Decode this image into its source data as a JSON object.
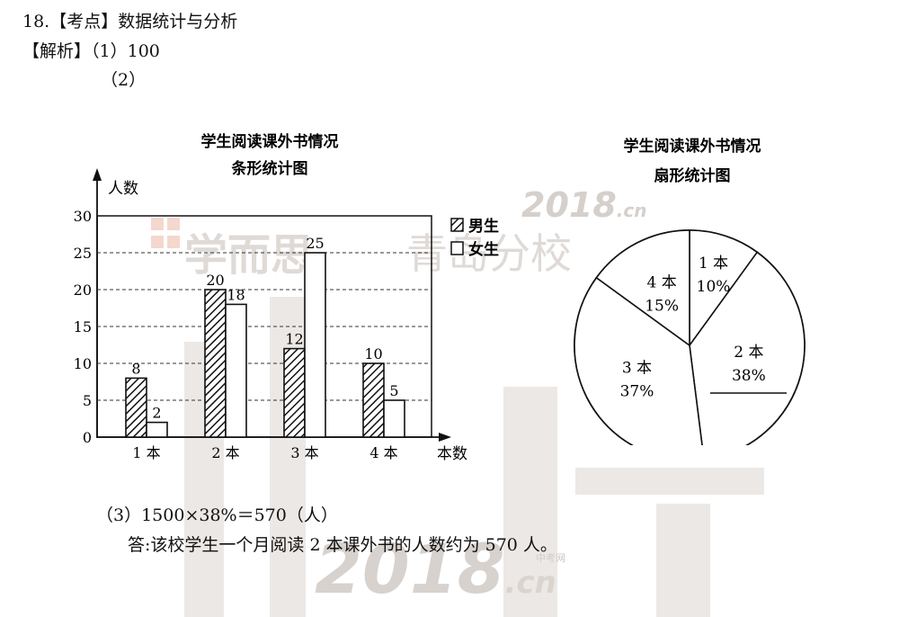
{
  "header": {
    "q_number": "18.",
    "q_topic_label": "【考点】",
    "q_topic": "数据统计与分析",
    "analysis_label": "【解析】",
    "part1": "（1）100",
    "part2": "（2）"
  },
  "footer": {
    "part3": "（3）1500×38%＝570（人）",
    "answer": "答:该校学生一个月阅读 2 本课外书的人数约为 570 人。"
  },
  "watermarks": {
    "brand": "学而思",
    "school": "青岛分校",
    "site": "2018",
    "site_suffix": ".cn",
    "site_small": "中考网"
  },
  "colors": {
    "watermark": "#d9d2cc",
    "watermark_accent": "#f2b9a8"
  },
  "chart_data": [
    {
      "type": "bar",
      "title": "学生阅读课外书情况",
      "subtitle": "条形统计图",
      "ylabel": "人数",
      "xlabel": "本数",
      "categories": [
        "1 本",
        "2 本",
        "3 本",
        "4 本"
      ],
      "ylim": [
        0,
        30
      ],
      "yticks": [
        "0",
        "5",
        "10",
        "15",
        "20",
        "25",
        "30"
      ],
      "grid": true,
      "legend_position": "top-right",
      "series": [
        {
          "name": "男生",
          "values": [
            8,
            20,
            12,
            10
          ],
          "pattern": "hatched"
        },
        {
          "name": "女生",
          "values": [
            2,
            18,
            25,
            5
          ],
          "pattern": "blank"
        }
      ],
      "data_labels": {
        "男生": [
          "8",
          "20",
          "12",
          "10"
        ],
        "女生": [
          "2",
          "18",
          "25",
          "5"
        ]
      }
    },
    {
      "type": "pie",
      "title": "学生阅读课外书情况",
      "subtitle": "扇形统计图",
      "slices": [
        {
          "label": "1 本",
          "percent_label": "10%",
          "value": 10
        },
        {
          "label": "2 本",
          "percent_label": "38%",
          "value": 38
        },
        {
          "label": "3 本",
          "percent_label": "37%",
          "value": 37
        },
        {
          "label": "4 本",
          "percent_label": "15%",
          "value": 15
        }
      ]
    }
  ]
}
